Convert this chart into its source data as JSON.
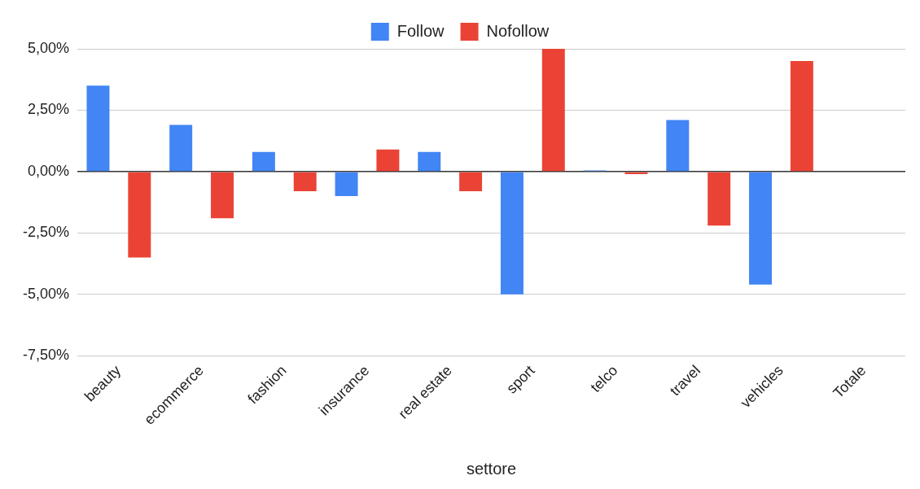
{
  "chart_data": {
    "type": "bar",
    "xlabel": "settore",
    "categories": [
      "beauty",
      "ecommerce",
      "fashion",
      "insurance",
      "real estate",
      "sport",
      "telco",
      "travel",
      "vehicles",
      "Totale"
    ],
    "series": [
      {
        "name": "Follow",
        "color": "#4285f4",
        "values": [
          3.5,
          1.9,
          0.8,
          -1.0,
          0.8,
          -5.0,
          0.05,
          2.1,
          -4.6,
          0
        ]
      },
      {
        "name": "Nofollow",
        "color": "#ea4335",
        "values": [
          -3.5,
          -1.9,
          -0.8,
          0.9,
          -0.8,
          5.0,
          -0.1,
          -2.2,
          4.5,
          0
        ]
      }
    ],
    "ylim": [
      -7.5,
      5
    ],
    "yticks": [
      {
        "value": -7.5,
        "label": "-7,50%"
      },
      {
        "value": -5,
        "label": "-5,00%"
      },
      {
        "value": -2.5,
        "label": "-2,50%"
      },
      {
        "value": 0,
        "label": "0,00%"
      },
      {
        "value": 2.5,
        "label": "2,50%"
      },
      {
        "value": 5,
        "label": "5,00%"
      }
    ],
    "grid": "y",
    "legend": "top"
  }
}
